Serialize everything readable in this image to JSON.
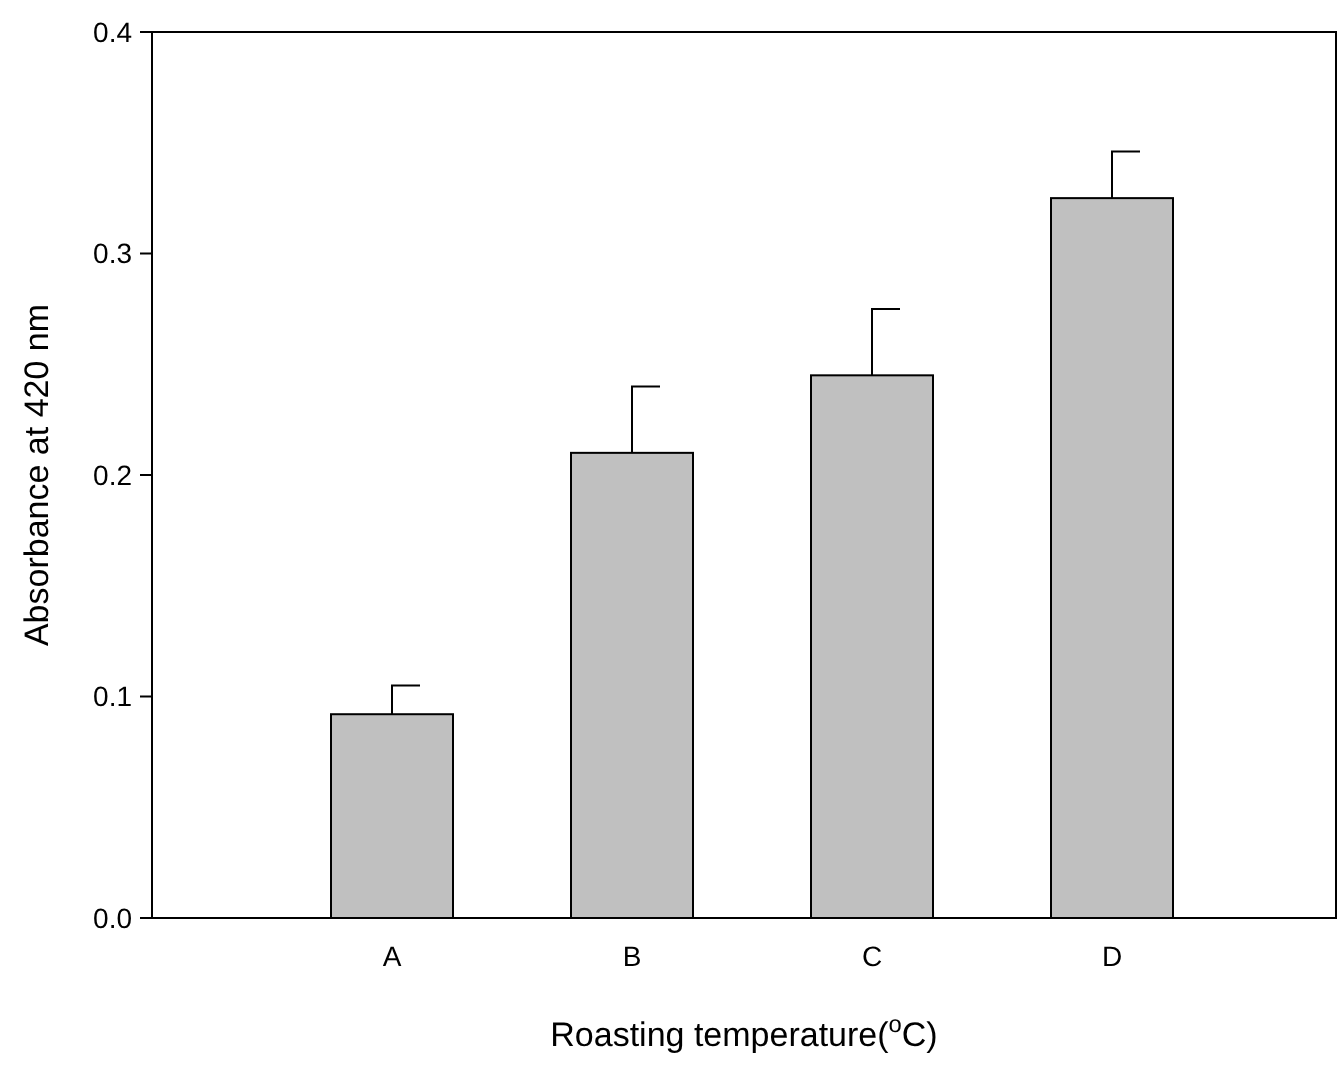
{
  "chart_data": {
    "type": "bar",
    "xlabel": "Roasting temperature($^{o}$C)",
    "ylabel": "Absorbance at 420 nm",
    "categories": [
      "A",
      "B",
      "C",
      "D"
    ],
    "values": [
      0.092,
      0.21,
      0.245,
      0.325
    ],
    "errors": [
      0.013,
      0.03,
      0.03,
      0.021
    ],
    "color": "#c0c0c0",
    "ylim": [
      0,
      0.4
    ],
    "yticks": [
      {
        "value": 0,
        "label": "0.0"
      },
      {
        "value": 0.1,
        "label": "0.1"
      },
      {
        "value": 0.2,
        "label": "0.2"
      },
      {
        "value": 0.3,
        "label": "0.3"
      },
      {
        "value": 0.4,
        "label": "0.4"
      }
    ],
    "grid": false
  }
}
